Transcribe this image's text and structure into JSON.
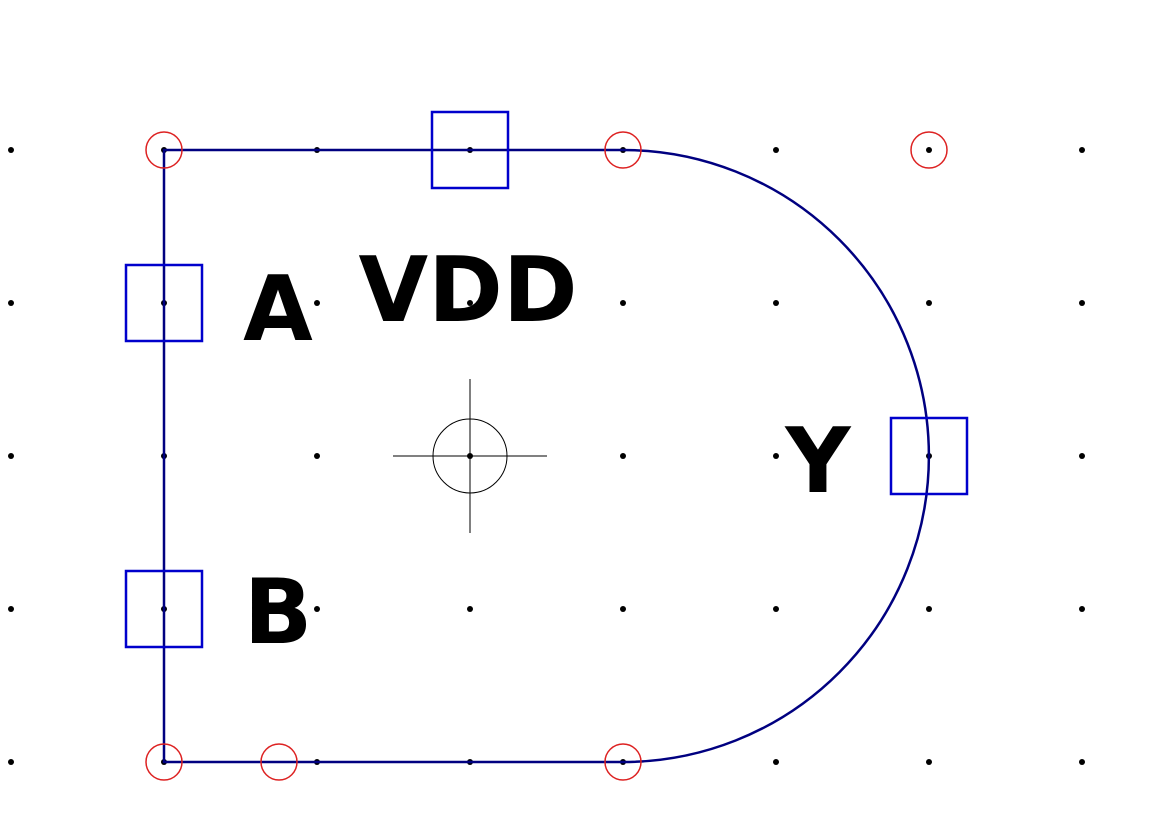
{
  "symbol": {
    "labels": {
      "power": "VDD",
      "input_a": "A",
      "input_b": "B",
      "output": "Y"
    },
    "colors": {
      "background": "#ffffff",
      "grid_dot": "#000000",
      "outline": "#000080",
      "pin_box": "#0000cc",
      "vertex_marker": "#dd2222",
      "origin_marker": "#000000",
      "text": "#000000"
    }
  }
}
